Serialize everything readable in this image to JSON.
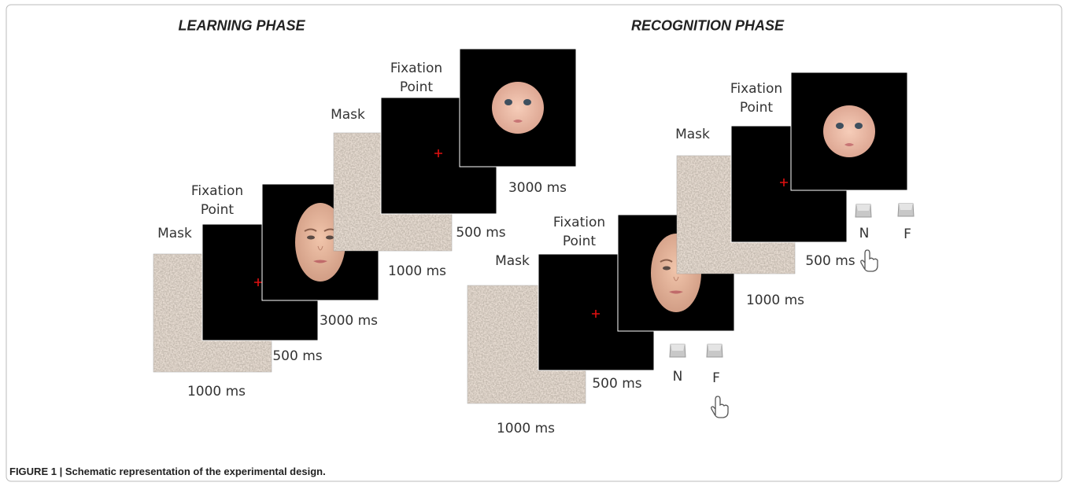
{
  "learning_phase": {
    "title": "LEARNING PHASE",
    "trials": [
      {
        "mask": "Mask",
        "fixation": "Fixation Point",
        "mask_duration": "1000 ms",
        "fixation_duration": "500 ms",
        "face_duration": "3000 ms"
      },
      {
        "mask": "Mask",
        "fixation": "Fixation Point",
        "mask_duration": "1000 ms",
        "fixation_duration": "500 ms",
        "face_duration": "3000 ms"
      }
    ]
  },
  "recognition_phase": {
    "title": "RECOGNITION PHASE",
    "trials": [
      {
        "mask": "Mask",
        "fixation": "Fixation Point",
        "mask_duration": "1000 ms",
        "fixation_duration": "500 ms",
        "keys": [
          "N",
          "F"
        ]
      },
      {
        "mask": "Mask",
        "fixation": "Fixation Point",
        "mask_duration": "1000 ms",
        "fixation_duration": "500 ms",
        "keys": [
          "N",
          "F"
        ]
      }
    ]
  },
  "caption": "FIGURE 1 | Schematic representation of the experimental design."
}
